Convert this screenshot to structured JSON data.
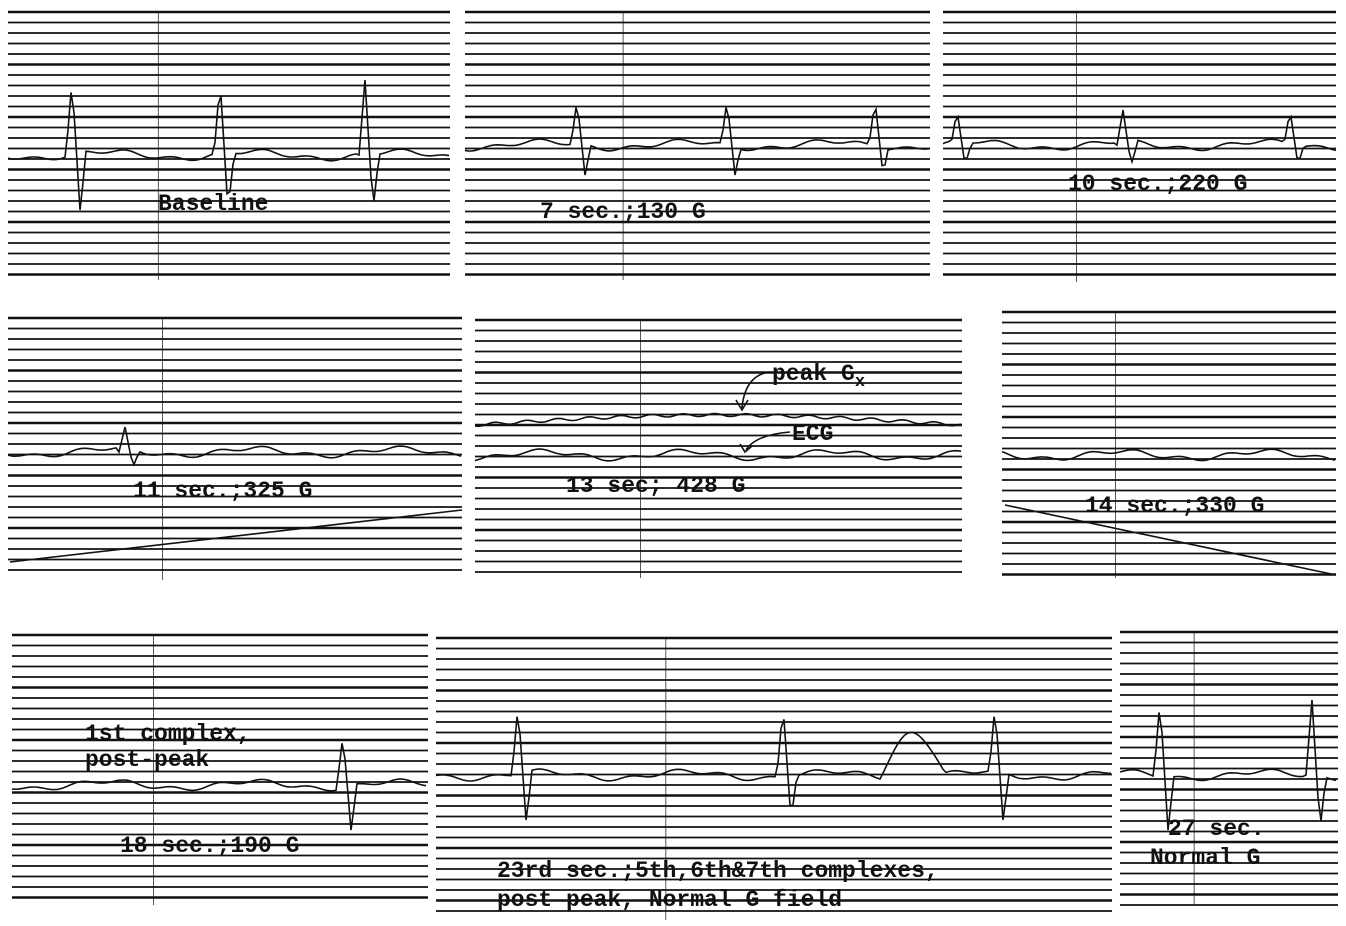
{
  "panels": [
    {
      "label_lines": [
        "Baseline"
      ]
    },
    {
      "label_lines": [
        "7 sec.;130 G"
      ]
    },
    {
      "label_lines": [
        "10 sec.;220 G"
      ]
    },
    {
      "label_lines": [
        "11 sec.;325 G"
      ]
    },
    {
      "label_lines": [
        "13 sec; 428 G"
      ],
      "annotations": [
        {
          "text": "peak G",
          "subscript": "x"
        },
        {
          "text": "ECG"
        }
      ]
    },
    {
      "label_lines": [
        "14 sec.;330 G"
      ]
    },
    {
      "label_lines": [
        "18 sec.;190 G"
      ],
      "note_lines": [
        "1st complex,",
        "post-peak"
      ]
    },
    {
      "label_lines": [
        "23rd sec.;5th,6th&7th complexes,",
        "post peak, Normal G field"
      ]
    },
    {
      "label_lines": [
        "27 sec.",
        "Normal G"
      ]
    }
  ]
}
